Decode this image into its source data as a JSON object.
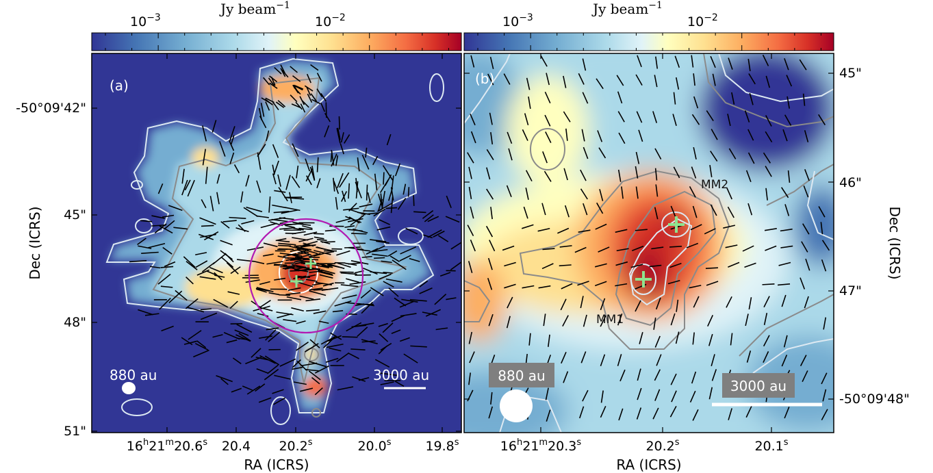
{
  "colorbar": {
    "unit": "Jy beam",
    "unit_exp": "−1",
    "tick_low": "10",
    "tick_low_exp": "−3",
    "tick_high": "10",
    "tick_high_exp": "−2"
  },
  "panel_a": {
    "label": "(a)",
    "beam_label": "880 au",
    "scale_label": "3000 au",
    "x_axis_label": "RA (ICRS)",
    "y_axis_label": "Dec (ICRS)",
    "x_ticks": [
      {
        "h": "16",
        "m": "21",
        "s": "20.6",
        "rest": ""
      },
      {
        "text": "20.4"
      },
      {
        "text": "20.2"
      },
      {
        "text": "20.0"
      },
      {
        "text": "19.8"
      }
    ],
    "y_ticks": [
      "-50°09'42\"",
      "45\"",
      "48\"",
      "51\""
    ]
  },
  "panel_b": {
    "label": "(b)",
    "beam_label": "880 au",
    "scale_label": "3000 au",
    "x_axis_label": "RA (ICRS)",
    "y_axis_label": "Dec (ICRS)",
    "sources": [
      "MM1",
      "MM2"
    ],
    "x_ticks": [
      {
        "h": "16",
        "m": "21",
        "s": "20.3"
      },
      {
        "text": "20.2"
      },
      {
        "text": "20.1"
      }
    ],
    "y_ticks": [
      "45\"",
      "46\"",
      "47\"",
      "-50°09'48\""
    ]
  },
  "colors": {
    "background": "#313695",
    "circle": "#b21ab2",
    "cross": "#8fe38f",
    "contour_dark": "#8a8a8a",
    "contour_light": "#dde9f2",
    "label_box": "#7f7f7f"
  }
}
